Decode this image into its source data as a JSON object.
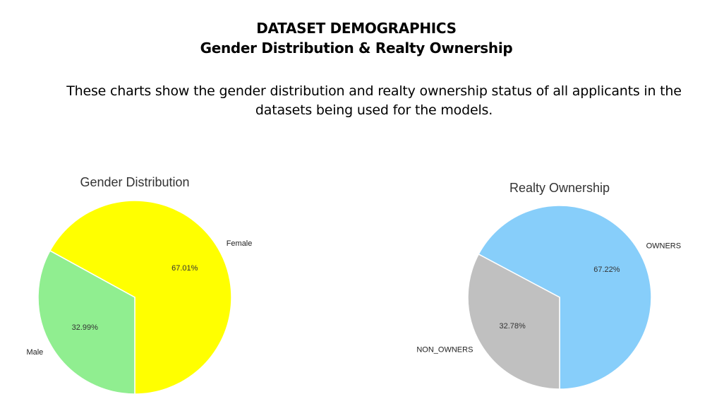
{
  "header": {
    "title_line1": "DATASET DEMOGRAPHICS",
    "title_line2": "Gender Distribution & Realty Ownership",
    "description": "These charts show the gender distribution and realty ownership status of all applicants in the datasets being used for the models."
  },
  "chart_data": [
    {
      "type": "pie",
      "title": "Gender Distribution",
      "slices": [
        {
          "label": "Female",
          "value": 67.01,
          "pct_label": "67.01%",
          "color": "#ffff00"
        },
        {
          "label": "Male",
          "value": 32.99,
          "pct_label": "32.99%",
          "color": "#90ee90"
        }
      ],
      "start_angle_deg": 270,
      "direction": "counterclockwise"
    },
    {
      "type": "pie",
      "title": "Realty Ownership",
      "slices": [
        {
          "label": "OWNERS",
          "value": 67.22,
          "pct_label": "67.22%",
          "color": "#87cefa"
        },
        {
          "label": "NON_OWNERS",
          "value": 32.78,
          "pct_label": "32.78%",
          "color": "#c0c0c0"
        }
      ],
      "start_angle_deg": 270,
      "direction": "counterclockwise"
    }
  ]
}
